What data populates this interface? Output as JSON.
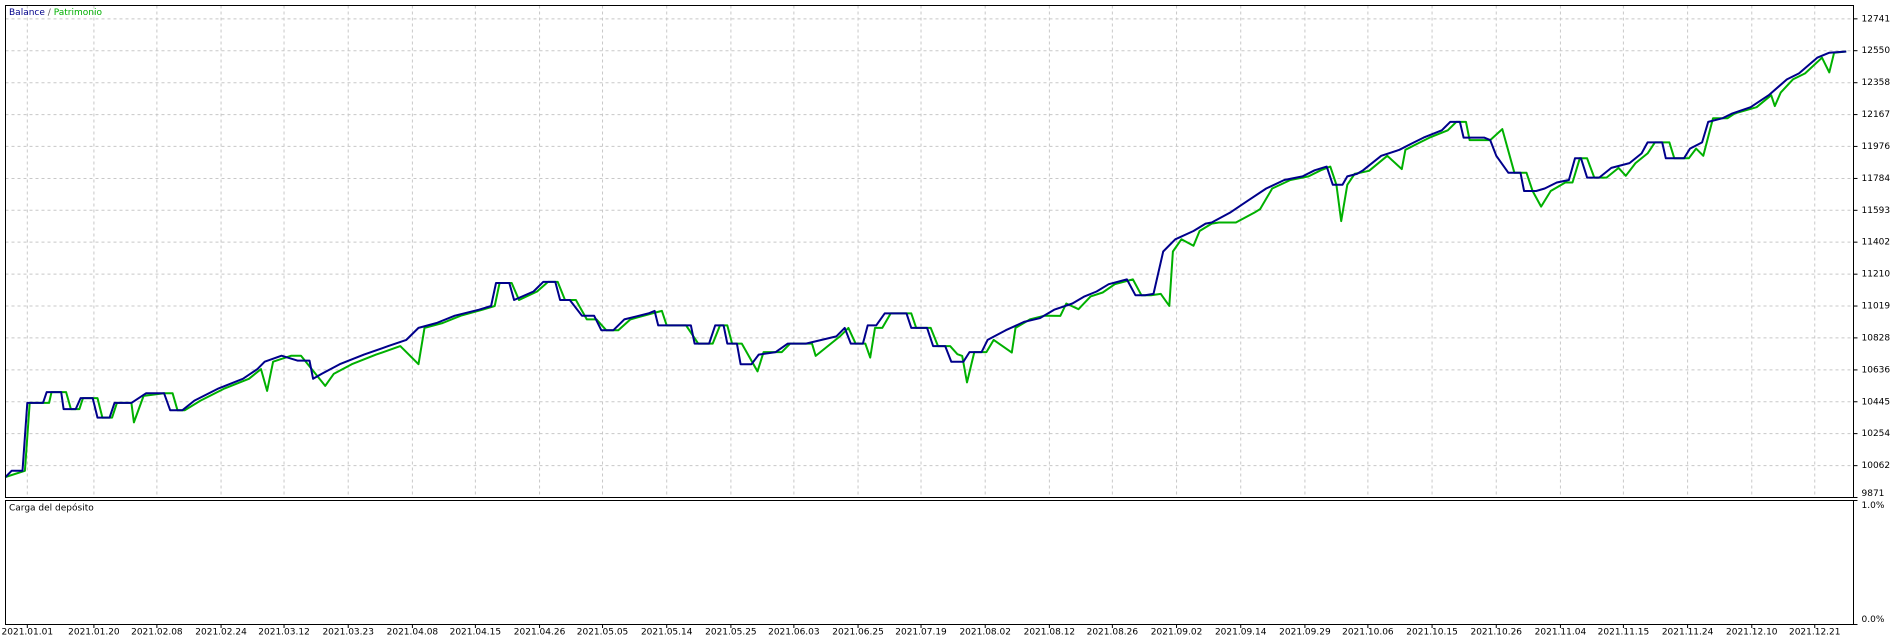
{
  "chart_data": [
    {
      "type": "line",
      "legend_separator": "/",
      "grid": true,
      "xlim": [
        4,
        1530
      ],
      "ylim": [
        9871,
        12821
      ],
      "yticks": [
        12741,
        12550,
        12358,
        12167,
        11976,
        11784,
        11593,
        11402,
        11210,
        11019,
        10828,
        10636,
        10445,
        10254,
        10062,
        9871
      ],
      "xticks": [
        {
          "value": 22,
          "label": "2021.01.01"
        },
        {
          "value": 77,
          "label": "2021.01.20"
        },
        {
          "value": 129,
          "label": "2021.02.08"
        },
        {
          "value": 182,
          "label": "2021.02.24"
        },
        {
          "value": 234,
          "label": "2021.03.12"
        },
        {
          "value": 287,
          "label": "2021.03.23"
        },
        {
          "value": 340,
          "label": "2021.04.08"
        },
        {
          "value": 392,
          "label": "2021.04.15"
        },
        {
          "value": 445,
          "label": "2021.04.26"
        },
        {
          "value": 497,
          "label": "2021.05.05"
        },
        {
          "value": 550,
          "label": "2021.05.14"
        },
        {
          "value": 603,
          "label": "2021.05.25"
        },
        {
          "value": 655,
          "label": "2021.06.03"
        },
        {
          "value": 708,
          "label": "2021.06.25"
        },
        {
          "value": 760,
          "label": "2021.07.19"
        },
        {
          "value": 813,
          "label": "2021.08.02"
        },
        {
          "value": 866,
          "label": "2021.08.12"
        },
        {
          "value": 918,
          "label": "2021.08.26"
        },
        {
          "value": 971,
          "label": "2021.09.02"
        },
        {
          "value": 1024,
          "label": "2021.09.14"
        },
        {
          "value": 1077,
          "label": "2021.09.29"
        },
        {
          "value": 1129,
          "label": "2021.10.06"
        },
        {
          "value": 1182,
          "label": "2021.10.15"
        },
        {
          "value": 1235,
          "label": "2021.10.26"
        },
        {
          "value": 1288,
          "label": "2021.11.04"
        },
        {
          "value": 1340,
          "label": "2021.11.15"
        },
        {
          "value": 1393,
          "label": "2021.11.24"
        },
        {
          "value": 1446,
          "label": "2021.12.10"
        },
        {
          "value": 1498,
          "label": "2021.12.21"
        }
      ],
      "series": [
        {
          "name": "Patrimonio",
          "color": "#00b000",
          "x": [
            4,
            20,
            24,
            40,
            42,
            54,
            58,
            65,
            68,
            80,
            84,
            92,
            96,
            108,
            110,
            118,
            135,
            142,
            146,
            152,
            165,
            185,
            205,
            215,
            220,
            225,
            240,
            248,
            268,
            275,
            290,
            310,
            330,
            345,
            350,
            365,
            380,
            398,
            408,
            412,
            422,
            428,
            443,
            452,
            460,
            466,
            475,
            484,
            492,
            500,
            510,
            520,
            538,
            546,
            550,
            560,
            566,
            576,
            588,
            594,
            600,
            604,
            612,
            625,
            630,
            645,
            652,
            670,
            673,
            693,
            700,
            706,
            714,
            718,
            722,
            728,
            735,
            752,
            756,
            768,
            774,
            784,
            790,
            794,
            798,
            804,
            814,
            820,
            835,
            838,
            850,
            862,
            875,
            880,
            890,
            900,
            910,
            920,
            935,
            942,
            950,
            958,
            965,
            968,
            975,
            985,
            990,
            1000,
            1006,
            1020,
            1035,
            1040,
            1050,
            1065,
            1080,
            1090,
            1098,
            1103,
            1107,
            1112,
            1118,
            1130,
            1145,
            1157,
            1160,
            1170,
            1180,
            1195,
            1202,
            1210,
            1213,
            1230,
            1240,
            1250,
            1260,
            1265,
            1272,
            1280,
            1292,
            1298,
            1304,
            1310,
            1316,
            1326,
            1336,
            1342,
            1350,
            1360,
            1366,
            1378,
            1382,
            1394,
            1400,
            1406,
            1414,
            1426,
            1432,
            1450,
            1462,
            1465,
            1470,
            1480,
            1490,
            1504,
            1510,
            1514,
            1524
          ],
          "values": [
            9994,
            10031,
            10438,
            10438,
            10503,
            10503,
            10401,
            10401,
            10467,
            10467,
            10350,
            10350,
            10438,
            10438,
            10321,
            10480,
            10496,
            10496,
            10394,
            10394,
            10452,
            10525,
            10583,
            10641,
            10510,
            10685,
            10721,
            10721,
            10540,
            10612,
            10670,
            10728,
            10779,
            10670,
            10888,
            10917,
            10961,
            10997,
            11019,
            11157,
            11157,
            11055,
            11106,
            11164,
            11164,
            11055,
            11055,
            10939,
            10939,
            10874,
            10874,
            10939,
            10975,
            10990,
            10903,
            10903,
            10903,
            10794,
            10794,
            10903,
            10903,
            10794,
            10794,
            10627,
            10743,
            10743,
            10794,
            10794,
            10720,
            10837,
            10888,
            10794,
            10794,
            10710,
            10888,
            10888,
            10975,
            10975,
            10888,
            10888,
            10779,
            10779,
            10730,
            10720,
            10561,
            10743,
            10743,
            10816,
            10740,
            10888,
            10939,
            10961,
            10960,
            11034,
            11000,
            11077,
            11100,
            11150,
            11179,
            11084,
            11084,
            11092,
            11020,
            11346,
            11419,
            11380,
            11469,
            11513,
            11520,
            11520,
            11578,
            11600,
            11724,
            11775,
            11796,
            11833,
            11855,
            11746,
            11528,
            11746,
            11811,
            11830,
            11920,
            11840,
            11956,
            11993,
            12029,
            12073,
            12123,
            12123,
            12014,
            12014,
            12080,
            11818,
            11818,
            11709,
            11615,
            11709,
            11760,
            11760,
            11905,
            11905,
            11789,
            11789,
            11847,
            11800,
            11876,
            11934,
            12000,
            12000,
            11905,
            11905,
            11963,
            11920,
            12145,
            12145,
            12174,
            12211,
            12283,
            12218,
            12300,
            12378,
            12414,
            12508,
            12420,
            12538,
            12545
          ]
        },
        {
          "name": "Balance",
          "color": "#00008b",
          "x": [
            4,
            9,
            18,
            22,
            35,
            38,
            50,
            52,
            62,
            66,
            76,
            80,
            90,
            94,
            108,
            120,
            135,
            140,
            150,
            160,
            180,
            200,
            212,
            218,
            232,
            245,
            255,
            258,
            265,
            280,
            300,
            320,
            335,
            345,
            360,
            375,
            395,
            405,
            409,
            420,
            424,
            440,
            448,
            458,
            462,
            470,
            480,
            490,
            496,
            506,
            515,
            535,
            540,
            543,
            556,
            570,
            573,
            585,
            590,
            597,
            600,
            608,
            611,
            620,
            626,
            640,
            650,
            665,
            690,
            697,
            702,
            712,
            716,
            723,
            730,
            748,
            752,
            765,
            770,
            780,
            785,
            795,
            800,
            810,
            815,
            830,
            845,
            858,
            870,
            885,
            895,
            905,
            915,
            930,
            937,
            945,
            952,
            960,
            970,
            985,
            995,
            1000,
            1015,
            1030,
            1045,
            1060,
            1075,
            1085,
            1095,
            1100,
            1108,
            1112,
            1120,
            1125,
            1140,
            1155,
            1165,
            1175,
            1190,
            1197,
            1205,
            1208,
            1225,
            1230,
            1235,
            1245,
            1255,
            1258,
            1268,
            1275,
            1285,
            1295,
            1300,
            1305,
            1310,
            1320,
            1330,
            1345,
            1355,
            1360,
            1372,
            1375,
            1390,
            1395,
            1405,
            1410,
            1422,
            1430,
            1445,
            1460,
            1475,
            1485,
            1500,
            1510,
            1524
          ],
          "values": [
            9994,
            10031,
            10031,
            10438,
            10438,
            10503,
            10503,
            10401,
            10401,
            10467,
            10467,
            10350,
            10350,
            10438,
            10438,
            10496,
            10496,
            10394,
            10394,
            10452,
            10525,
            10583,
            10641,
            10685,
            10721,
            10692,
            10692,
            10583,
            10612,
            10670,
            10728,
            10779,
            10816,
            10888,
            10917,
            10961,
            10997,
            11019,
            11157,
            11157,
            11055,
            11106,
            11164,
            11164,
            11055,
            11055,
            10961,
            10961,
            10874,
            10874,
            10939,
            10975,
            10990,
            10903,
            10903,
            10903,
            10794,
            10794,
            10903,
            10903,
            10794,
            10794,
            10670,
            10670,
            10728,
            10743,
            10794,
            10794,
            10837,
            10888,
            10794,
            10794,
            10903,
            10903,
            10975,
            10975,
            10888,
            10888,
            10779,
            10779,
            10685,
            10685,
            10743,
            10743,
            10816,
            10874,
            10924,
            10946,
            10997,
            11034,
            11077,
            11106,
            11150,
            11179,
            11084,
            11084,
            11092,
            11346,
            11419,
            11469,
            11513,
            11520,
            11578,
            11651,
            11724,
            11775,
            11796,
            11833,
            11855,
            11746,
            11746,
            11796,
            11811,
            11833,
            11920,
            11956,
            11993,
            12029,
            12073,
            12123,
            12123,
            12029,
            12029,
            12014,
            11920,
            11818,
            11818,
            11709,
            11709,
            11724,
            11760,
            11775,
            11905,
            11905,
            11789,
            11789,
            11847,
            11876,
            11934,
            12000,
            12000,
            11905,
            11905,
            11963,
            12000,
            12123,
            12145,
            12174,
            12211,
            12283,
            12378,
            12414,
            12508,
            12538,
            12545
          ]
        }
      ]
    },
    {
      "type": "load",
      "title": "Carga del depósito",
      "ylim": [
        0,
        1
      ],
      "yticks": [
        {
          "value": 1,
          "label": "1.0%"
        },
        {
          "value": 0,
          "label": "0.0%"
        }
      ]
    }
  ]
}
